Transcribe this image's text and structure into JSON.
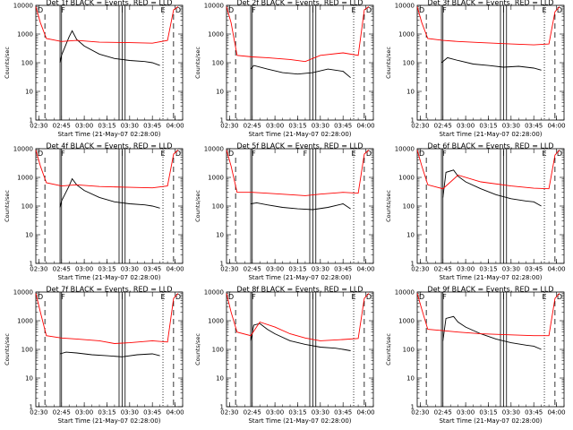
{
  "chart_data": [
    {
      "type": "line",
      "title": "Det 1f BLACK = Events, RED = LLD",
      "ylabel": "Counts/sec",
      "xlabel": "Start Time (21-May-07 02:28:00)",
      "x_range": [
        "02:28",
        "04:05"
      ],
      "ylim": [
        1,
        10000
      ],
      "yscale": "log",
      "x_ticks": [
        "02:30",
        "02:45",
        "03:00",
        "03:15",
        "03:30",
        "03:45",
        "04:00"
      ],
      "y_ticks": [
        "1",
        "10",
        "100",
        "1000",
        "10000"
      ],
      "markers": [
        {
          "label": "D",
          "time": "02:31"
        },
        {
          "label": "F",
          "time": "02:46"
        },
        {
          "label": "I",
          "time": "03:25"
        },
        {
          "label": "E",
          "time": "03:52"
        },
        {
          "label": "D",
          "time": "04:02"
        }
      ],
      "series": [
        {
          "color": "#000000",
          "x": [
            "02:44",
            "02:45",
            "02:50",
            "02:52",
            "02:55",
            "03:00",
            "03:10",
            "03:20",
            "03:30",
            "03:40",
            "03:45",
            "03:50"
          ],
          "values": [
            100,
            180,
            800,
            1300,
            650,
            380,
            200,
            140,
            120,
            110,
            100,
            80
          ]
        },
        {
          "color": "#ff0000",
          "x": [
            "02:28",
            "02:31",
            "02:35",
            "02:45",
            "02:55",
            "03:10",
            "03:30",
            "03:45",
            "03:55",
            "03:59",
            "04:02"
          ],
          "values": [
            9000,
            2500,
            700,
            550,
            600,
            520,
            500,
            480,
            600,
            7000,
            9000
          ]
        }
      ]
    },
    {
      "type": "line",
      "title": "Det 2f BLACK = Events, RED = LLD",
      "ylabel": "Counts/sec",
      "xlabel": "Start Time (21-May-07 02:28:00)",
      "x_range": [
        "02:28",
        "04:05"
      ],
      "ylim": [
        1,
        10000
      ],
      "yscale": "log",
      "x_ticks": [
        "02:30",
        "02:45",
        "03:00",
        "03:15",
        "03:30",
        "03:45",
        "04:00"
      ],
      "y_ticks": [
        "1",
        "10",
        "100",
        "1000",
        "10000"
      ],
      "markers": [
        {
          "label": "D",
          "time": "02:31"
        },
        {
          "label": "F",
          "time": "02:46"
        },
        {
          "label": "I",
          "time": "03:25"
        },
        {
          "label": "E",
          "time": "03:52"
        },
        {
          "label": "D",
          "time": "04:02"
        }
      ],
      "series": [
        {
          "color": "#000000",
          "x": [
            "02:44",
            "02:46",
            "02:55",
            "03:05",
            "03:15",
            "03:25",
            "03:35",
            "03:45",
            "03:50"
          ],
          "values": [
            60,
            80,
            60,
            45,
            40,
            45,
            60,
            50,
            30
          ]
        },
        {
          "color": "#ff0000",
          "x": [
            "02:28",
            "02:31",
            "02:35",
            "02:45",
            "02:55",
            "03:10",
            "03:20",
            "03:30",
            "03:45",
            "03:55",
            "03:59",
            "04:02"
          ],
          "values": [
            9000,
            2500,
            180,
            160,
            150,
            130,
            110,
            180,
            220,
            180,
            7000,
            9000
          ]
        }
      ]
    },
    {
      "type": "line",
      "title": "Det 3f BLACK = Events, RED = LLD",
      "ylabel": "Counts/sec",
      "xlabel": "Start Time (21-May-07 02:28:00)",
      "x_range": [
        "02:28",
        "04:05"
      ],
      "ylim": [
        1,
        10000
      ],
      "yscale": "log",
      "x_ticks": [
        "02:30",
        "02:45",
        "03:00",
        "03:15",
        "03:30",
        "03:45",
        "04:00"
      ],
      "y_ticks": [
        "1",
        "10",
        "100",
        "1000",
        "10000"
      ],
      "markers": [
        {
          "label": "D",
          "time": "02:31"
        },
        {
          "label": "F",
          "time": "02:46"
        },
        {
          "label": "I",
          "time": "03:25"
        },
        {
          "label": "E",
          "time": "03:52"
        },
        {
          "label": "D",
          "time": "04:02"
        }
      ],
      "series": [
        {
          "color": "#000000",
          "x": [
            "02:44",
            "02:48",
            "02:55",
            "03:05",
            "03:15",
            "03:25",
            "03:35",
            "03:45",
            "03:50"
          ],
          "values": [
            100,
            150,
            120,
            90,
            80,
            70,
            75,
            65,
            55
          ]
        },
        {
          "color": "#ff0000",
          "x": [
            "02:28",
            "02:31",
            "02:35",
            "02:45",
            "02:55",
            "03:10",
            "03:30",
            "03:45",
            "03:55",
            "03:59",
            "04:02"
          ],
          "values": [
            9000,
            2500,
            700,
            600,
            550,
            500,
            450,
            420,
            450,
            6000,
            9000
          ]
        }
      ]
    },
    {
      "type": "line",
      "title": "Det 4f BLACK = Events, RED = LLD",
      "ylabel": "Counts/sec",
      "xlabel": "Start Time (21-May-07 02:28:00)",
      "x_range": [
        "02:28",
        "04:05"
      ],
      "ylim": [
        1,
        10000
      ],
      "yscale": "log",
      "x_ticks": [
        "02:30",
        "02:45",
        "03:00",
        "03:15",
        "03:30",
        "03:45",
        "04:00"
      ],
      "y_ticks": [
        "1",
        "10",
        "100",
        "1000",
        "10000"
      ],
      "markers": [
        {
          "label": "D",
          "time": "02:31"
        },
        {
          "label": "F",
          "time": "02:46"
        },
        {
          "label": "I",
          "time": "03:25"
        },
        {
          "label": "E",
          "time": "03:52"
        },
        {
          "label": "D",
          "time": "04:02"
        }
      ],
      "series": [
        {
          "color": "#000000",
          "x": [
            "02:44",
            "02:45",
            "02:50",
            "02:52",
            "02:55",
            "03:00",
            "03:10",
            "03:20",
            "03:30",
            "03:40",
            "03:45",
            "03:50"
          ],
          "values": [
            90,
            150,
            500,
            900,
            550,
            350,
            200,
            140,
            120,
            110,
            100,
            85
          ]
        },
        {
          "color": "#ff0000",
          "x": [
            "02:28",
            "02:31",
            "02:35",
            "02:45",
            "02:55",
            "03:10",
            "03:30",
            "03:45",
            "03:55",
            "03:59",
            "04:02"
          ],
          "values": [
            9000,
            2500,
            650,
            500,
            550,
            480,
            450,
            430,
            500,
            6500,
            9000
          ]
        }
      ]
    },
    {
      "type": "line",
      "title": "Det 5f BLACK = Events, RED = LLD",
      "ylabel": "Counts/sec",
      "xlabel": "Start Time (21-May-07 02:28:00)",
      "x_range": [
        "02:28",
        "04:05"
      ],
      "ylim": [
        1,
        10000
      ],
      "yscale": "log",
      "x_ticks": [
        "02:30",
        "02:45",
        "03:00",
        "03:15",
        "03:30",
        "03:45",
        "04:00"
      ],
      "y_ticks": [
        "1",
        "10",
        "100",
        "1000",
        "10000"
      ],
      "markers": [
        {
          "label": "D",
          "time": "02:31"
        },
        {
          "label": "F",
          "time": "02:46"
        },
        {
          "label": "F",
          "time": "03:20"
        },
        {
          "label": "E",
          "time": "03:52"
        },
        {
          "label": "D",
          "time": "04:02"
        }
      ],
      "series": [
        {
          "color": "#000000",
          "x": [
            "02:44",
            "02:48",
            "02:55",
            "03:05",
            "03:15",
            "03:25",
            "03:35",
            "03:45",
            "03:50"
          ],
          "values": [
            120,
            130,
            110,
            90,
            80,
            75,
            90,
            120,
            80
          ]
        },
        {
          "color": "#ff0000",
          "x": [
            "02:28",
            "02:31",
            "02:35",
            "02:45",
            "02:55",
            "03:10",
            "03:20",
            "03:30",
            "03:45",
            "03:55",
            "03:59",
            "04:02"
          ],
          "values": [
            9000,
            2500,
            300,
            300,
            280,
            250,
            230,
            260,
            300,
            280,
            6500,
            9000
          ]
        }
      ]
    },
    {
      "type": "line",
      "title": "Det 6f BLACK = Events, RED = LLD",
      "ylabel": "Counts/sec",
      "xlabel": "Start Time (21-May-07 02:28:00)",
      "x_range": [
        "02:28",
        "04:05"
      ],
      "ylim": [
        1,
        10000
      ],
      "yscale": "log",
      "x_ticks": [
        "02:30",
        "02:45",
        "03:00",
        "03:15",
        "03:30",
        "03:45",
        "04:00"
      ],
      "y_ticks": [
        "1",
        "10",
        "100",
        "1000",
        "10000"
      ],
      "markers": [
        {
          "label": "D",
          "time": "02:31"
        },
        {
          "label": "F",
          "time": "02:46"
        },
        {
          "label": "I",
          "time": "03:25"
        },
        {
          "label": "E",
          "time": "03:52"
        },
        {
          "label": "D",
          "time": "04:02"
        }
      ],
      "series": [
        {
          "color": "#000000",
          "x": [
            "02:45",
            "02:47",
            "02:52",
            "02:55",
            "03:00",
            "03:10",
            "03:20",
            "03:30",
            "03:40",
            "03:45",
            "03:50"
          ],
          "values": [
            200,
            1500,
            1800,
            1100,
            700,
            400,
            250,
            180,
            150,
            140,
            100
          ]
        },
        {
          "color": "#ff0000",
          "x": [
            "02:28",
            "02:31",
            "02:35",
            "02:45",
            "02:55",
            "03:10",
            "03:30",
            "03:45",
            "03:55",
            "03:59",
            "04:02"
          ],
          "values": [
            9000,
            2500,
            550,
            400,
            1200,
            700,
            500,
            420,
            400,
            6000,
            9000
          ]
        }
      ]
    },
    {
      "type": "line",
      "title": "Det 7f BLACK = Events, RED = LLD",
      "ylabel": "Counts/sec",
      "xlabel": "Start Time (21-May-07 02:28:00)",
      "x_range": [
        "02:28",
        "04:05"
      ],
      "ylim": [
        1,
        10000
      ],
      "yscale": "log",
      "x_ticks": [
        "02:30",
        "02:45",
        "03:00",
        "03:15",
        "03:30",
        "03:45",
        "04:00"
      ],
      "y_ticks": [
        "1",
        "10",
        "100",
        "1000",
        "10000"
      ],
      "markers": [
        {
          "label": "D",
          "time": "02:31"
        },
        {
          "label": "F",
          "time": "02:46"
        },
        {
          "label": "I",
          "time": "03:25"
        },
        {
          "label": "E",
          "time": "03:52"
        },
        {
          "label": "D",
          "time": "04:02"
        }
      ],
      "series": [
        {
          "color": "#000000",
          "x": [
            "02:44",
            "02:48",
            "02:55",
            "03:05",
            "03:15",
            "03:25",
            "03:35",
            "03:45",
            "03:50"
          ],
          "values": [
            70,
            80,
            75,
            65,
            60,
            55,
            65,
            70,
            60
          ]
        },
        {
          "color": "#ff0000",
          "x": [
            "02:28",
            "02:31",
            "02:35",
            "02:45",
            "02:55",
            "03:10",
            "03:20",
            "03:30",
            "03:45",
            "03:55",
            "03:59",
            "04:02"
          ],
          "values": [
            9000,
            2000,
            300,
            250,
            230,
            200,
            160,
            170,
            200,
            180,
            6000,
            9000
          ]
        }
      ]
    },
    {
      "type": "line",
      "title": "Det 8f BLACK = Events, RED = LLD",
      "ylabel": "Counts/sec",
      "xlabel": "Start Time (21-May-07 02:28:00)",
      "x_range": [
        "02:28",
        "04:05"
      ],
      "ylim": [
        1,
        10000
      ],
      "yscale": "log",
      "x_ticks": [
        "02:30",
        "02:45",
        "03:00",
        "03:15",
        "03:30",
        "03:45",
        "04:00"
      ],
      "y_ticks": [
        "1",
        "10",
        "100",
        "1000",
        "10000"
      ],
      "markers": [
        {
          "label": "D",
          "time": "02:31"
        },
        {
          "label": "F",
          "time": "02:46"
        },
        {
          "label": "I",
          "time": "03:25"
        },
        {
          "label": "E",
          "time": "03:52"
        },
        {
          "label": "D",
          "time": "04:02"
        }
      ],
      "series": [
        {
          "color": "#000000",
          "x": [
            "02:44",
            "02:46",
            "02:50",
            "02:55",
            "03:00",
            "03:10",
            "03:20",
            "03:30",
            "03:40",
            "03:45",
            "03:50"
          ],
          "values": [
            200,
            700,
            800,
            500,
            350,
            200,
            150,
            120,
            110,
            100,
            90
          ]
        },
        {
          "color": "#ff0000",
          "x": [
            "02:28",
            "02:31",
            "02:35",
            "02:44",
            "02:50",
            "03:00",
            "03:10",
            "03:20",
            "03:30",
            "03:45",
            "03:55",
            "03:59",
            "04:02"
          ],
          "values": [
            9000,
            2000,
            400,
            300,
            900,
            600,
            350,
            250,
            200,
            220,
            240,
            6000,
            9000
          ]
        }
      ]
    },
    {
      "type": "line",
      "title": "Det 9f BLACK = Events, RED = LLD",
      "ylabel": "Counts/sec",
      "xlabel": "Start Time (21-May-07 02:28:00)",
      "x_range": [
        "02:28",
        "04:05"
      ],
      "ylim": [
        1,
        10000
      ],
      "yscale": "log",
      "x_ticks": [
        "02:30",
        "02:45",
        "03:00",
        "03:15",
        "03:30",
        "03:45",
        "04:00"
      ],
      "y_ticks": [
        "1",
        "10",
        "100",
        "1000",
        "10000"
      ],
      "markers": [
        {
          "label": "D",
          "time": "02:31"
        },
        {
          "label": "F",
          "time": "02:46"
        },
        {
          "label": "I",
          "time": "03:25"
        },
        {
          "label": "E",
          "time": "03:52"
        },
        {
          "label": "D",
          "time": "04:02"
        }
      ],
      "series": [
        {
          "color": "#000000",
          "x": [
            "02:45",
            "02:47",
            "02:52",
            "02:55",
            "03:00",
            "03:10",
            "03:20",
            "03:30",
            "03:40",
            "03:45",
            "03:50"
          ],
          "values": [
            200,
            1200,
            1400,
            900,
            600,
            350,
            230,
            170,
            140,
            130,
            100
          ]
        },
        {
          "color": "#ff0000",
          "x": [
            "02:28",
            "02:31",
            "02:35",
            "02:45",
            "02:55",
            "03:10",
            "03:30",
            "03:45",
            "03:55",
            "03:59",
            "04:02"
          ],
          "values": [
            9000,
            2500,
            500,
            450,
            400,
            350,
            320,
            300,
            300,
            6000,
            9000
          ]
        }
      ]
    }
  ]
}
